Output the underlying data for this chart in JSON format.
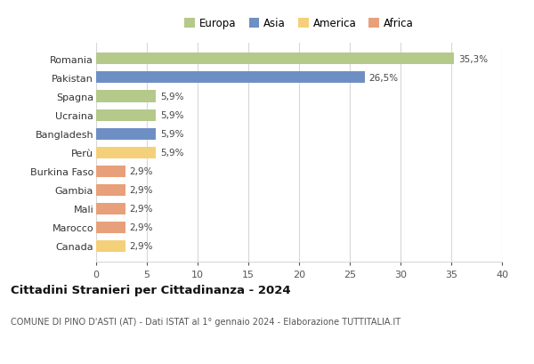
{
  "countries": [
    "Romania",
    "Pakistan",
    "Spagna",
    "Ucraina",
    "Bangladesh",
    "Perù",
    "Burkina Faso",
    "Gambia",
    "Mali",
    "Marocco",
    "Canada"
  ],
  "values": [
    35.3,
    26.5,
    5.9,
    5.9,
    5.9,
    5.9,
    2.9,
    2.9,
    2.9,
    2.9,
    2.9
  ],
  "labels": [
    "35,3%",
    "26,5%",
    "5,9%",
    "5,9%",
    "5,9%",
    "5,9%",
    "2,9%",
    "2,9%",
    "2,9%",
    "2,9%",
    "2,9%"
  ],
  "colors": [
    "#b5c98a",
    "#6e8fc4",
    "#b5c98a",
    "#b5c98a",
    "#6e8fc4",
    "#f5d07a",
    "#e8a07a",
    "#e8a07a",
    "#e8a07a",
    "#e8a07a",
    "#f5d07a"
  ],
  "legend_labels": [
    "Europa",
    "Asia",
    "America",
    "Africa"
  ],
  "legend_colors": [
    "#b5c98a",
    "#6e8fc4",
    "#f5d07a",
    "#e8a07a"
  ],
  "title": "Cittadini Stranieri per Cittadinanza - 2024",
  "subtitle": "COMUNE DI PINO D'ASTI (AT) - Dati ISTAT al 1° gennaio 2024 - Elaborazione TUTTITALIA.IT",
  "xlim": [
    0,
    40
  ],
  "xticks": [
    0,
    5,
    10,
    15,
    20,
    25,
    30,
    35,
    40
  ],
  "bg_color": "#ffffff",
  "grid_color": "#d8d8d8"
}
